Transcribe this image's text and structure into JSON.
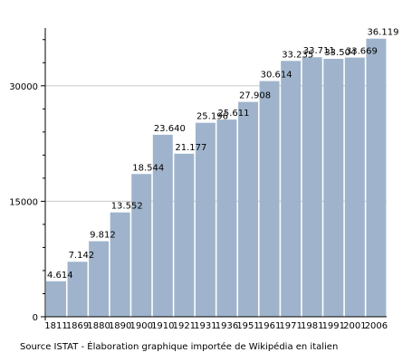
{
  "chart_data": {
    "type": "bar",
    "categories": [
      "1811",
      "1869",
      "1880",
      "1890",
      "1900",
      "1910",
      "1921",
      "1931",
      "1936",
      "1951",
      "1961",
      "1971",
      "1981",
      "1991",
      "2001",
      "2006"
    ],
    "values": [
      4614,
      7142,
      9812,
      13552,
      18544,
      23640,
      21177,
      25196,
      25611,
      27908,
      30614,
      33235,
      33711,
      33504,
      33669,
      36119
    ],
    "data_labels": [
      "4.614",
      "7.142",
      "9.812",
      "13.552",
      "18.544",
      "23.640",
      "21.177",
      "25.196",
      "25.611",
      "27.908",
      "30.614",
      "33.235",
      "33.711",
      "33.504",
      "33.669",
      "36.119"
    ],
    "ylim": [
      0,
      37500
    ],
    "yticks": [
      0,
      15000,
      30000
    ],
    "ytick_labels": [
      "0",
      "15000",
      "30000"
    ],
    "bar_color": "#9fb4cc",
    "grid": true,
    "title": "",
    "xlabel": "",
    "ylabel": ""
  },
  "source_note": "Source ISTAT - Élaboration graphique importée de Wikipédia en italien"
}
